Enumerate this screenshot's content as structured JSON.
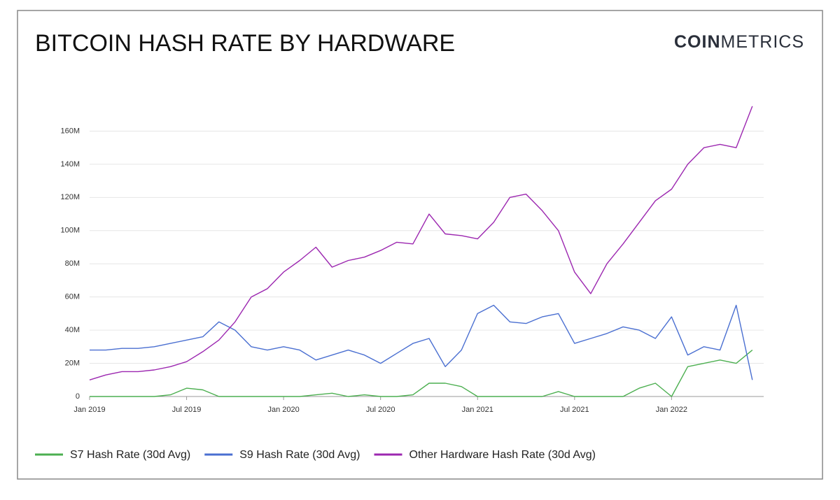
{
  "chart_data": {
    "type": "line",
    "title": "BITCOIN HASH RATE BY HARDWARE",
    "brand": {
      "bold": "COIN",
      "light": "METRICS"
    },
    "x": [
      "2019-01",
      "2019-02",
      "2019-03",
      "2019-04",
      "2019-05",
      "2019-06",
      "2019-07",
      "2019-08",
      "2019-09",
      "2019-10",
      "2019-11",
      "2019-12",
      "2020-01",
      "2020-02",
      "2020-03",
      "2020-04",
      "2020-05",
      "2020-06",
      "2020-07",
      "2020-08",
      "2020-09",
      "2020-10",
      "2020-11",
      "2020-12",
      "2021-01",
      "2021-02",
      "2021-03",
      "2021-04",
      "2021-05",
      "2021-06",
      "2021-07",
      "2021-08",
      "2021-09",
      "2021-10",
      "2021-11",
      "2021-12",
      "2022-01",
      "2022-02",
      "2022-03",
      "2022-04",
      "2022-05",
      "2022-06"
    ],
    "series": [
      {
        "name": "S7 Hash Rate (30d Avg)",
        "color": "#4caf50",
        "values": [
          0,
          0,
          0,
          0,
          0,
          1000000,
          5000000,
          4000000,
          0,
          0,
          0,
          0,
          0,
          0,
          1000000,
          2000000,
          0,
          1000000,
          0,
          0,
          1000000,
          8000000,
          8000000,
          6000000,
          0,
          0,
          0,
          0,
          0,
          3000000,
          0,
          0,
          0,
          0,
          5000000,
          8000000,
          0,
          18000000,
          20000000,
          22000000,
          20000000,
          28000000
        ]
      },
      {
        "name": "S9 Hash Rate (30d Avg)",
        "color": "#4a6fd1",
        "values": [
          28000000,
          28000000,
          29000000,
          29000000,
          30000000,
          32000000,
          34000000,
          36000000,
          45000000,
          40000000,
          30000000,
          28000000,
          30000000,
          28000000,
          22000000,
          25000000,
          28000000,
          25000000,
          20000000,
          26000000,
          32000000,
          35000000,
          18000000,
          28000000,
          50000000,
          55000000,
          45000000,
          44000000,
          48000000,
          50000000,
          32000000,
          35000000,
          38000000,
          42000000,
          40000000,
          35000000,
          48000000,
          25000000,
          30000000,
          28000000,
          55000000,
          10000000
        ]
      },
      {
        "name": "Other Hardware Hash Rate (30d Avg)",
        "color": "#9c27b0",
        "values": [
          10000000,
          13000000,
          15000000,
          15000000,
          16000000,
          18000000,
          21000000,
          27000000,
          34000000,
          45000000,
          60000000,
          65000000,
          75000000,
          82000000,
          90000000,
          78000000,
          82000000,
          84000000,
          88000000,
          93000000,
          92000000,
          110000000,
          98000000,
          97000000,
          95000000,
          105000000,
          120000000,
          122000000,
          112000000,
          100000000,
          75000000,
          62000000,
          80000000,
          92000000,
          105000000,
          118000000,
          125000000,
          140000000,
          150000000,
          152000000,
          150000000,
          175000000
        ]
      }
    ],
    "xlim": [
      "2019-01",
      "2022-06"
    ],
    "xticks": [
      {
        "value": "2019-01",
        "label": "Jan 2019"
      },
      {
        "value": "2019-07",
        "label": "Jul 2019"
      },
      {
        "value": "2020-01",
        "label": "Jan 2020"
      },
      {
        "value": "2020-07",
        "label": "Jul 2020"
      },
      {
        "value": "2021-01",
        "label": "Jan 2021"
      },
      {
        "value": "2021-07",
        "label": "Jul 2021"
      },
      {
        "value": "2022-01",
        "label": "Jan 2022"
      }
    ],
    "ylim": [
      0,
      180000000
    ],
    "yticks": [
      0,
      {
        "value": 20000000,
        "label": "20M"
      },
      {
        "value": 40000000,
        "label": "40M"
      },
      {
        "value": 60000000,
        "label": "60M"
      },
      {
        "value": 80000000,
        "label": "80M"
      },
      {
        "value": 100000000,
        "label": "100M"
      },
      {
        "value": 120000000,
        "label": "120M"
      },
      {
        "value": 140000000,
        "label": "140M"
      },
      {
        "value": 160000000,
        "label": "160M"
      }
    ],
    "grid": true
  }
}
